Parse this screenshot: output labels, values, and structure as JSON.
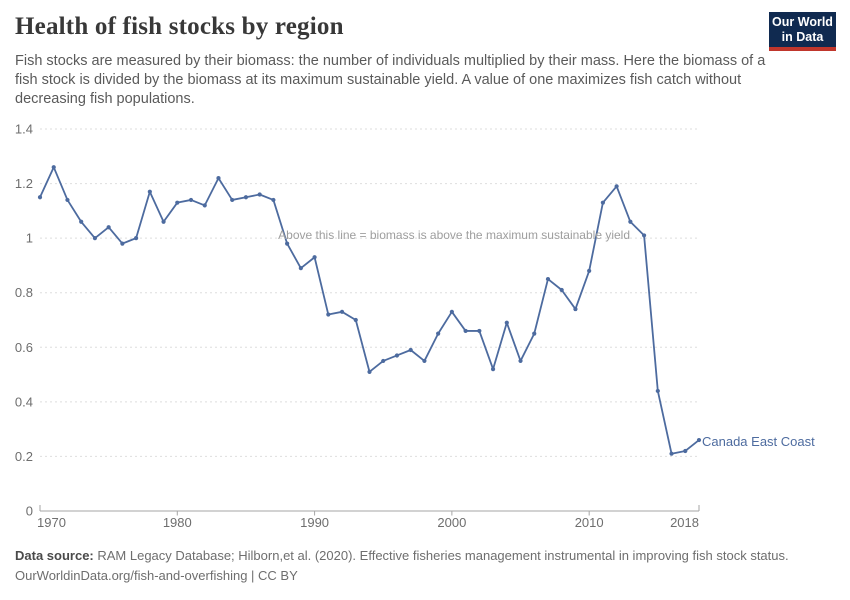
{
  "header": {
    "title": "Health of fish stocks by region",
    "subtitle": "Fish stocks are measured by their biomass: the number of individuals multiplied by their mass. Here the biomass of a fish stock is divided by the biomass at its maximum sustainable yield. A value of one maximizes fish catch without decreasing fish populations.",
    "logo": {
      "line1": "Our World",
      "line2": "in Data",
      "bg_color": "#102a50",
      "stripe_color": "#c0362c"
    }
  },
  "chart_data": {
    "type": "line",
    "title": "Health of fish stocks by region",
    "xlabel": "",
    "ylabel": "",
    "ylim": [
      0,
      1.4
    ],
    "xlim": [
      1970,
      2018
    ],
    "grid": "horizontal-dashed",
    "legend_position": "end-of-line-label",
    "annotation": "Above this line = biomass is above the maximum sustainable yield",
    "annotation_y": 1.0,
    "x": [
      1970,
      1971,
      1972,
      1973,
      1974,
      1975,
      1976,
      1977,
      1978,
      1979,
      1980,
      1981,
      1982,
      1983,
      1984,
      1985,
      1986,
      1987,
      1988,
      1989,
      1990,
      1991,
      1992,
      1993,
      1994,
      1995,
      1996,
      1997,
      1998,
      1999,
      2000,
      2001,
      2002,
      2003,
      2004,
      2005,
      2006,
      2007,
      2008,
      2009,
      2010,
      2011,
      2012,
      2013,
      2014,
      2015,
      2016,
      2017,
      2018
    ],
    "series": [
      {
        "name": "Canada East Coast",
        "color": "#4d6b9f",
        "values": [
          1.15,
          1.26,
          1.14,
          1.06,
          1.0,
          1.04,
          0.98,
          1.0,
          1.17,
          1.06,
          1.13,
          1.14,
          1.12,
          1.22,
          1.14,
          1.15,
          1.16,
          1.14,
          0.98,
          0.89,
          0.93,
          0.72,
          0.73,
          0.7,
          0.51,
          0.55,
          0.57,
          0.59,
          0.55,
          0.65,
          0.73,
          0.66,
          0.66,
          0.52,
          0.69,
          0.55,
          0.65,
          0.85,
          0.81,
          0.74,
          0.88,
          1.13,
          1.19,
          1.06,
          1.01,
          0.44,
          0.21,
          0.22,
          0.26
        ]
      }
    ],
    "yticks": [
      {
        "value": 1.4,
        "label": "1.4"
      },
      {
        "value": 1.2,
        "label": "1.2"
      },
      {
        "value": 1.0,
        "label": "1"
      },
      {
        "value": 0.8,
        "label": "0.8"
      },
      {
        "value": 0.6,
        "label": "0.6"
      },
      {
        "value": 0.4,
        "label": "0.4"
      },
      {
        "value": 0.2,
        "label": "0.2"
      },
      {
        "value": 0.0,
        "label": "0"
      }
    ],
    "xticks": [
      {
        "value": 1970,
        "label": "1970",
        "anchor": "start"
      },
      {
        "value": 1980,
        "label": "1980",
        "anchor": "middle"
      },
      {
        "value": 1990,
        "label": "1990",
        "anchor": "middle"
      },
      {
        "value": 2000,
        "label": "2000",
        "anchor": "middle"
      },
      {
        "value": 2010,
        "label": "2010",
        "anchor": "middle"
      },
      {
        "value": 2018,
        "label": "2018",
        "anchor": "end"
      }
    ],
    "colors": {
      "line": "#4d6b9f",
      "grid": "#dedede",
      "axis": "#a6a6a6",
      "tick_text": "#6e6e6e",
      "annotation_text": "#9e9e9e"
    }
  },
  "footer": {
    "source_label": "Data source:",
    "source_text": " RAM Legacy Database; Hilborn,et al. (2020). Effective fisheries management instrumental in improving fish stock status.",
    "line2": "OurWorldinData.org/fish-and-overfishing | CC BY"
  }
}
